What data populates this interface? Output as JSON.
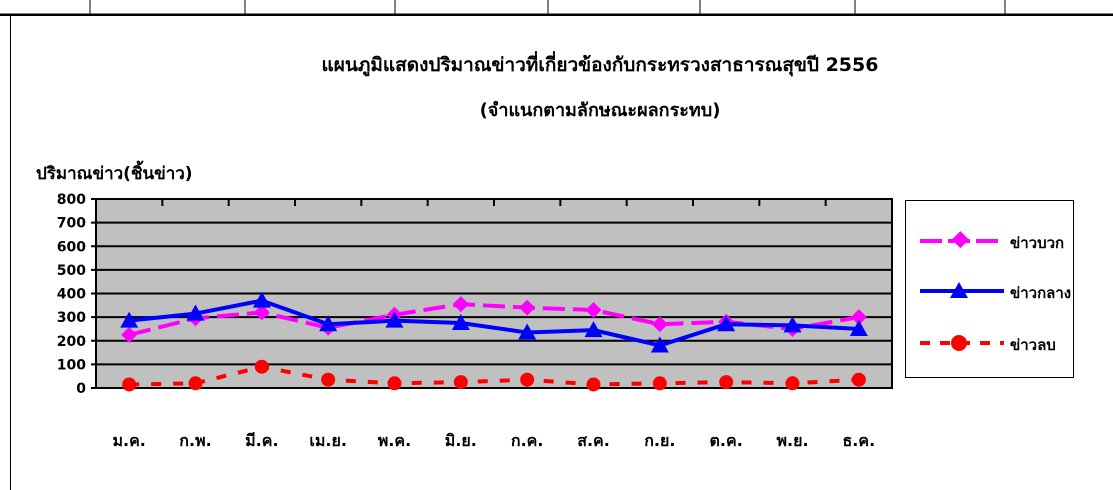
{
  "chart_data": {
    "type": "line",
    "title": "แผนภูมิแสดงปริมาณข่าวที่เกี่ยวข้องกับกระทรวงสาธารณสุขปี 2556",
    "subtitle": "(จำแนกตามลักษณะผลกระทบ)",
    "ylabel": "ปริมาณข่าว(ชิ้นข่าว)",
    "xlabel": "",
    "categories": [
      "ม.ค.",
      "ก.พ.",
      "มี.ค.",
      "เม.ย.",
      "พ.ค.",
      "มิ.ย.",
      "ก.ค.",
      "ส.ค.",
      "ก.ย.",
      "ต.ค.",
      "พ.ย.",
      "ธ.ค."
    ],
    "ylim": [
      0,
      800
    ],
    "yticks": [
      "0",
      "100",
      "200",
      "300",
      "400",
      "500",
      "600",
      "700",
      "800"
    ],
    "grid": true,
    "legend_position": "right",
    "series": [
      {
        "name": "ข่าวบวก",
        "color": "#ff00ff",
        "marker": "diamond",
        "dash": "long-dash",
        "values": [
          225,
          295,
          320,
          255,
          310,
          355,
          340,
          330,
          270,
          280,
          250,
          300
        ]
      },
      {
        "name": "ข่าวกลาง",
        "color": "#0000ff",
        "marker": "triangle",
        "dash": "solid",
        "values": [
          285,
          315,
          370,
          270,
          285,
          275,
          235,
          245,
          180,
          270,
          265,
          250
        ]
      },
      {
        "name": "ข่าวลบ",
        "color": "#ff0000",
        "marker": "circle",
        "dash": "dashed",
        "values": [
          15,
          20,
          90,
          35,
          20,
          25,
          35,
          15,
          20,
          25,
          20,
          35
        ]
      }
    ]
  }
}
